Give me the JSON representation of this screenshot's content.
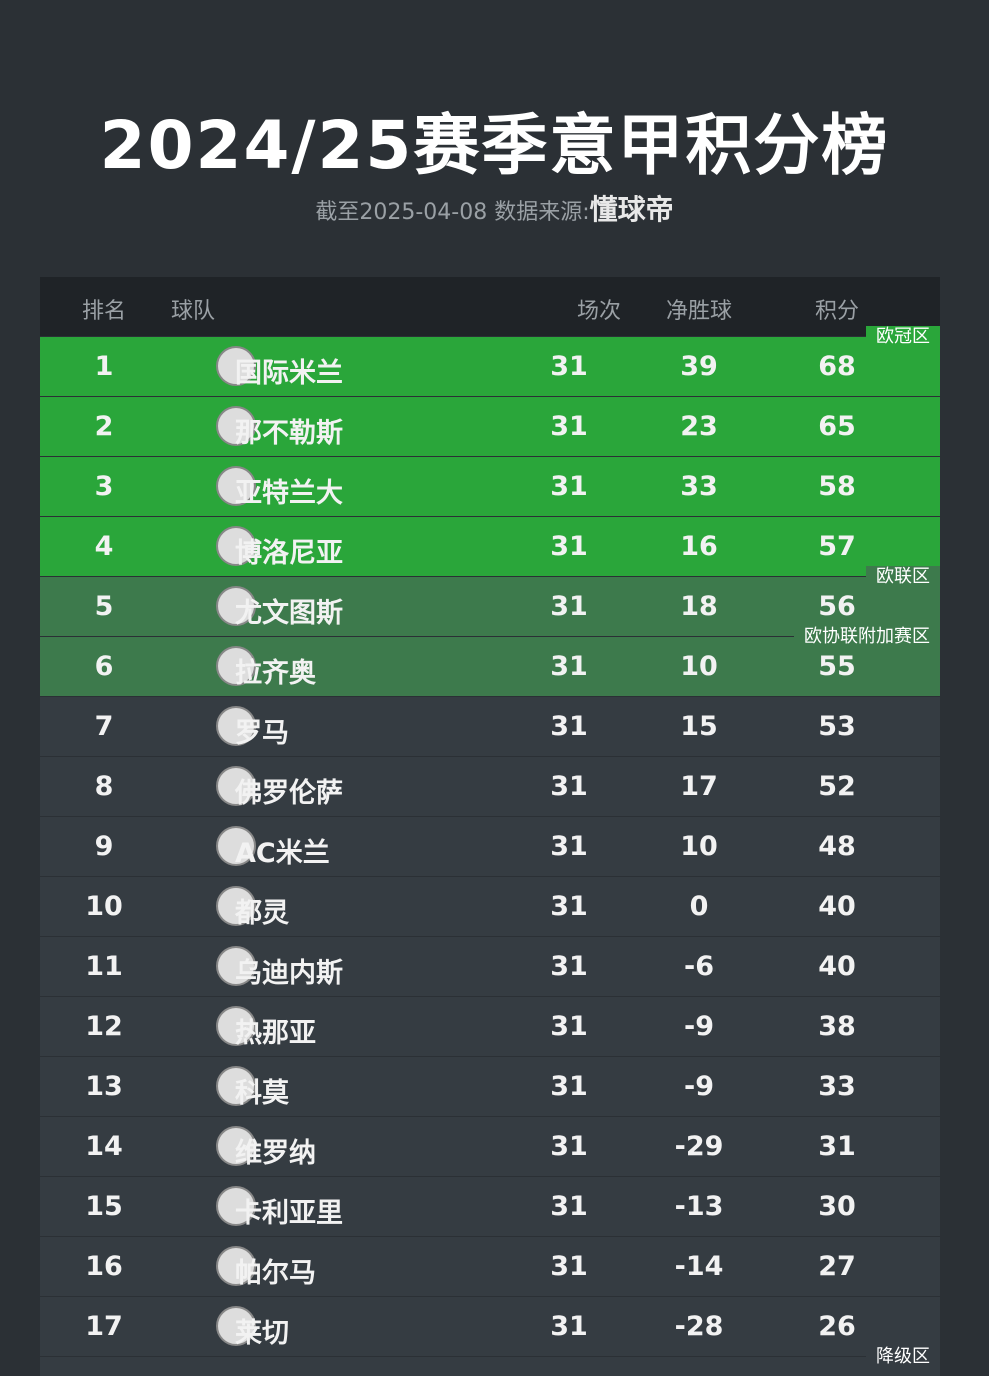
{
  "header": {
    "title": "2024/25赛季意甲积分榜",
    "subtitle": "截至2025-04-08 数据来源:",
    "source": "懂球帝"
  },
  "table": {
    "columns": [
      "排名",
      "球队",
      "场次",
      "净胜球",
      "积分"
    ],
    "rows": [
      [
        1,
        "国际米兰",
        31,
        39,
        68
      ],
      [
        2,
        "那不勒斯",
        31,
        23,
        65
      ],
      [
        3,
        "亚特兰大",
        31,
        33,
        58
      ],
      [
        4,
        "博洛尼亚",
        31,
        16,
        57
      ],
      [
        5,
        "尤文图斯",
        31,
        18,
        56
      ],
      [
        6,
        "拉齐奥",
        31,
        10,
        55
      ],
      [
        7,
        "罗马",
        31,
        15,
        53
      ],
      [
        8,
        "佛罗伦萨",
        31,
        17,
        52
      ],
      [
        9,
        "AC米兰",
        31,
        10,
        48
      ],
      [
        10,
        "都灵",
        31,
        0,
        40
      ],
      [
        11,
        "乌迪内斯",
        31,
        -6,
        40
      ],
      [
        12,
        "热那亚",
        31,
        -9,
        38
      ],
      [
        13,
        "科莫",
        31,
        -9,
        33
      ],
      [
        14,
        "维罗纳",
        31,
        -29,
        31
      ],
      [
        15,
        "卡利亚里",
        31,
        -13,
        30
      ],
      [
        16,
        "帕尔马",
        31,
        -14,
        27
      ],
      [
        17,
        "莱切",
        31,
        -28,
        26
      ]
    ],
    "zones": [
      "欧冠区",
      "欧联区",
      "欧协联附加赛区",
      "降级区"
    ]
  }
}
